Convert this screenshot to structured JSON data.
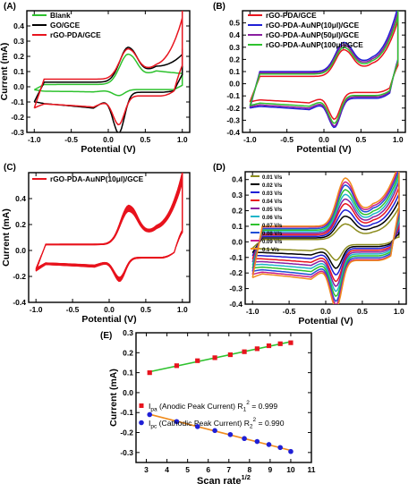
{
  "figure": {
    "colors": {
      "green": "#2ec22e",
      "black": "#000000",
      "red": "#e8141e",
      "blue": "#1f1fd6",
      "purple": "#8a1fa0",
      "orange": "#f08c1e"
    }
  },
  "chart_data": [
    {
      "panel_label": "(A)",
      "type": "line",
      "xlabel": "Potential (V)",
      "ylabel": "Current (mA)",
      "xlim": [
        -1.1,
        1.1
      ],
      "ylim": [
        -0.3,
        0.5
      ],
      "xticks": [
        -1.0,
        -0.5,
        0.0,
        0.5,
        1.0
      ],
      "xtick_labels": [
        "-1.0",
        "-0.5",
        "0.0",
        "0.5",
        "1.0"
      ],
      "yticks": [
        -0.3,
        -0.2,
        -0.1,
        0.0,
        0.1,
        0.2,
        0.3,
        0.4
      ],
      "ytick_labels": [
        "-0.3",
        "-0.2",
        "-0.1",
        "0.0",
        "0.1",
        "0.2",
        "0.3",
        "0.4"
      ],
      "legend_position": "top-left",
      "series": [
        {
          "name": "Blank",
          "color": "#2ec22e",
          "pa": 0.2,
          "pc": -0.04,
          "b": 0.18,
          "base": 0.015,
          "tail": 0.0,
          "ra": 0.01,
          "rc": -0.02
        },
        {
          "name": "GO/GCE",
          "color": "#000000",
          "pa": 0.23,
          "pc": -0.27,
          "b": 0.21,
          "base": 0.03,
          "tail": 0.1,
          "ra": 0.08,
          "rc": -0.1
        },
        {
          "name": "rGO-PDA/GCE",
          "color": "#e8141e",
          "pa": 0.2,
          "pc": -0.19,
          "b": 0.22,
          "base": 0.05,
          "tail": 0.33,
          "ra": 0.14,
          "rc": -0.14
        }
      ]
    },
    {
      "panel_label": "(B)",
      "type": "line",
      "xlabel": "Potential (V)",
      "ylabel": "",
      "xlim": [
        -1.1,
        1.1
      ],
      "ylim": [
        -0.4,
        0.6
      ],
      "xticks": [
        -1.0,
        -0.5,
        0.0,
        0.5,
        1.0
      ],
      "xtick_labels": [
        "-1.0",
        "-0.5",
        "0.0",
        "0.5",
        "1.0"
      ],
      "yticks": [
        -0.4,
        -0.3,
        -0.2,
        -0.1,
        0.0,
        0.1,
        0.2,
        0.3,
        0.4,
        0.5
      ],
      "ytick_labels": [
        "-0.4",
        "-0.3",
        "-0.2",
        "-0.1",
        "0.0",
        "0.1",
        "0.2",
        "0.3",
        "0.4",
        "0.5"
      ],
      "legend_position": "top-left",
      "series": [
        {
          "name": "rGO-PDA/GCE",
          "color": "#e8141e",
          "pa": 0.22,
          "pc": -0.22,
          "b": 0.2,
          "base": 0.06,
          "tail": 0.38,
          "ra": 0.15,
          "rc": -0.15
        },
        {
          "name": "rGO-PDA-AuNP(10μl)/GCE",
          "color": "#1f1fd6",
          "pa": 0.24,
          "pc": -0.24,
          "b": 0.21,
          "base": 0.1,
          "tail": 0.45,
          "ra": 0.2,
          "rc": -0.2
        },
        {
          "name": "rGO-PDA-AuNP(50μl)/GCE",
          "color": "#8a1fa0",
          "pa": 0.23,
          "pc": -0.24,
          "b": 0.21,
          "base": 0.09,
          "tail": 0.42,
          "ra": 0.19,
          "rc": -0.19
        },
        {
          "name": "rGO-PDA-AuNP(100μl)/GCE",
          "color": "#2ec22e",
          "pa": 0.22,
          "pc": -0.23,
          "b": 0.2,
          "base": 0.08,
          "tail": 0.4,
          "ra": 0.18,
          "rc": -0.18
        }
      ]
    },
    {
      "panel_label": "(C)",
      "type": "line",
      "xlabel": "Potential (V)",
      "ylabel": "Current (mA)",
      "xlim": [
        -1.1,
        1.1
      ],
      "ylim": [
        -0.4,
        0.6
      ],
      "xticks": [
        -1.0,
        -0.5,
        0.0,
        0.5,
        1.0
      ],
      "xtick_labels": [
        "-1.0",
        "-0.5",
        "0.0",
        "0.5",
        "1.0"
      ],
      "yticks": [
        -0.4,
        -0.2,
        0.0,
        0.2,
        0.4
      ],
      "ytick_labels": [
        "-0.4",
        "-0.2",
        "0.0",
        "0.2",
        "0.4"
      ],
      "legend_position": "top-left",
      "cycles": 20,
      "series": [
        {
          "name": "rGO-PDA-AuNP(10μl)/GCE",
          "color": "#e8141e",
          "pa": 0.3,
          "pc": -0.18,
          "b": 0.25,
          "base": 0.05,
          "tail": 0.45,
          "ra": 0.16,
          "rc": -0.16
        }
      ]
    },
    {
      "panel_label": "(D)",
      "type": "line",
      "xlabel": "Potential (V)",
      "ylabel": "",
      "xlim": [
        -1.1,
        1.1
      ],
      "ylim": [
        -0.4,
        0.45
      ],
      "xticks": [
        -1.0,
        -0.5,
        0.0,
        0.5,
        1.0
      ],
      "xtick_labels": [
        "-1.0",
        "-0.5",
        "0.0",
        "0.5",
        "1.0"
      ],
      "yticks": [
        -0.4,
        -0.3,
        -0.2,
        -0.1,
        0.0,
        0.1,
        0.2,
        0.3,
        0.4
      ],
      "ytick_labels": [
        "-0.4",
        "-0.3",
        "-0.2",
        "-0.1",
        "0.0",
        "0.1",
        "0.2",
        "0.3",
        "0.4"
      ],
      "legend_position": "top-left",
      "series": [
        {
          "name": "0.01 V/s",
          "color": "#8c8c1e",
          "pa": 0.1,
          "pc": -0.1,
          "b": 0.2,
          "base": 0.015,
          "tail": 0.17,
          "ra": 0.03,
          "rc": -0.04
        },
        {
          "name": "0.02 V/s",
          "color": "#000000",
          "pa": 0.14,
          "pc": -0.14,
          "b": 0.2,
          "base": 0.025,
          "tail": 0.19,
          "ra": 0.05,
          "rc": -0.07
        },
        {
          "name": "0.03 V/s",
          "color": "#1f1fd6",
          "pa": 0.17,
          "pc": -0.17,
          "b": 0.2,
          "base": 0.035,
          "tail": 0.21,
          "ra": 0.07,
          "rc": -0.09
        },
        {
          "name": "0.04 V/s",
          "color": "#e8141e",
          "pa": 0.2,
          "pc": -0.2,
          "b": 0.2,
          "base": 0.045,
          "tail": 0.23,
          "ra": 0.09,
          "rc": -0.11
        },
        {
          "name": "0.05 V/s",
          "color": "#8a1fa0",
          "pa": 0.22,
          "pc": -0.22,
          "b": 0.2,
          "base": 0.055,
          "tail": 0.25,
          "ra": 0.11,
          "rc": -0.13
        },
        {
          "name": "0.06 V/s",
          "color": "#1fb5c8",
          "pa": 0.24,
          "pc": -0.24,
          "b": 0.2,
          "base": 0.065,
          "tail": 0.26,
          "ra": 0.13,
          "rc": -0.15
        },
        {
          "name": "0.07 V/s",
          "color": "#2ec22e",
          "pa": 0.26,
          "pc": -0.26,
          "b": 0.2,
          "base": 0.075,
          "tail": 0.27,
          "ra": 0.15,
          "rc": -0.17
        },
        {
          "name": "0.08 V/s",
          "color": "#1f4fd6",
          "pa": 0.28,
          "pc": -0.28,
          "b": 0.2,
          "base": 0.085,
          "tail": 0.28,
          "ra": 0.17,
          "rc": -0.19
        },
        {
          "name": "0.09 V/s",
          "color": "#c81f8c",
          "pa": 0.29,
          "pc": -0.29,
          "b": 0.2,
          "base": 0.095,
          "tail": 0.29,
          "ra": 0.19,
          "rc": -0.21
        },
        {
          "name": "0.1 V/s",
          "color": "#f08c1e",
          "pa": 0.31,
          "pc": -0.31,
          "b": 0.2,
          "base": 0.1,
          "tail": 0.3,
          "ra": 0.21,
          "rc": -0.23
        }
      ]
    },
    {
      "panel_label": "(E)",
      "type": "scatter",
      "xlabel": "Scan rate1/2",
      "ylabel": "Current (mA)",
      "xlim": [
        2.5,
        11
      ],
      "ylim": [
        -0.35,
        0.3
      ],
      "xticks": [
        3,
        4,
        5,
        6,
        7,
        8,
        9,
        10,
        11
      ],
      "xtick_labels": [
        "3",
        "4",
        "5",
        "6",
        "7",
        "8",
        "9",
        "10",
        "11"
      ],
      "yticks": [
        -0.3,
        -0.2,
        -0.1,
        0.0,
        0.1,
        0.2,
        0.3
      ],
      "ytick_labels": [
        "-0.3",
        "-0.2",
        "-0.1",
        "0.0",
        "0.1",
        "0.2",
        "0.3"
      ],
      "x": [
        3.16,
        4.47,
        5.48,
        6.32,
        7.07,
        7.75,
        8.37,
        8.94,
        9.49,
        10.0
      ],
      "series": [
        {
          "name": "Ipa (Anodic Peak Current) R1² = 0.999",
          "color": "#e8141e",
          "fit_color": "#2ec22e",
          "marker": "square",
          "values": [
            0.1,
            0.135,
            0.16,
            0.175,
            0.19,
            0.205,
            0.22,
            0.235,
            0.245,
            0.25
          ]
        },
        {
          "name": "Ipc (Cathodic Peak Current) R2² = 0.990",
          "color": "#1f1fd6",
          "fit_color": "#f08c1e",
          "marker": "circle",
          "values": [
            -0.11,
            -0.145,
            -0.17,
            -0.19,
            -0.21,
            -0.23,
            -0.245,
            -0.26,
            -0.275,
            -0.295
          ]
        }
      ],
      "legend": [
        {
          "sym": "I",
          "sub": "pa",
          "text": " (Anodic Peak Current) R",
          "sub2": "1",
          "sup": "2",
          "tail": " = 0.999"
        },
        {
          "sym": "I",
          "sub": "pc",
          "text": " (Cathodic Peak Current) R",
          "sub2": "2",
          "sup": "2",
          "tail": " = 0.990"
        }
      ]
    }
  ]
}
